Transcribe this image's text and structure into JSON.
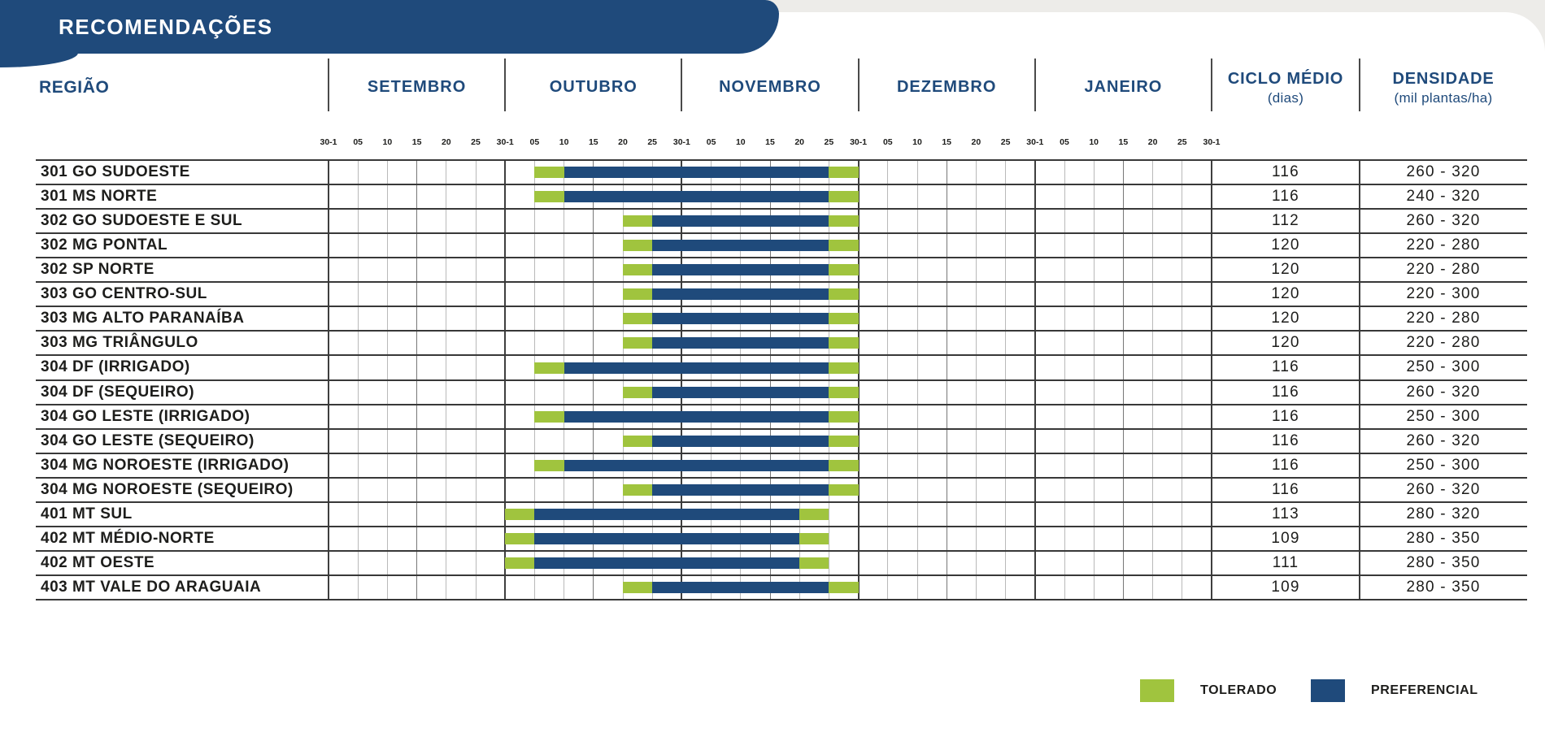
{
  "colors": {
    "banner_blue": "#1F4A7B",
    "header_text_blue": "#1F4A7B",
    "tolerado_green": "#A0C43E",
    "preferencial_blue": "#1F4A7B",
    "grid_dark": "#3f3f3f",
    "grid_light": "#b9b9b9",
    "page_edge_gray": "#EDECE9",
    "text_dark": "#1d1d1b"
  },
  "chart_data": {
    "type": "table",
    "title": "RECOMENDAÇÕES",
    "region_column_header": "REGIÃO",
    "months": [
      "SETEMBRO",
      "OUTUBRO",
      "NOVEMBRO",
      "DEZEMBRO",
      "JANEIRO"
    ],
    "tick_labels": [
      "30-1",
      "05",
      "10",
      "15",
      "20",
      "25",
      "30-1",
      "05",
      "10",
      "15",
      "20",
      "25",
      "30-1",
      "05",
      "10",
      "15",
      "20",
      "25",
      "30-1",
      "05",
      "10",
      "15",
      "20",
      "25",
      "30-1",
      "05",
      "10",
      "15",
      "20",
      "25",
      "30-1"
    ],
    "ciclo_header": {
      "title": "CICLO MÉDIO",
      "subtitle": "(dias)"
    },
    "densidade_header": {
      "title": "DENSIDADE",
      "subtitle": "(mil plantas/ha)"
    },
    "window_note": "windows reference tick indexes 0-30 of tick_labels (5-day planting periods Sep-Jan)",
    "rows": [
      {
        "region": "301 GO SUDOESTE",
        "ciclo": "116",
        "densidade": "260 - 320",
        "windows": [
          {
            "type": "tolerado",
            "from": 7,
            "to": 8
          },
          {
            "type": "preferencial",
            "from": 8,
            "to": 17
          },
          {
            "type": "tolerado",
            "from": 17,
            "to": 18
          }
        ]
      },
      {
        "region": "301 MS NORTE",
        "ciclo": "116",
        "densidade": "240 - 320",
        "windows": [
          {
            "type": "tolerado",
            "from": 7,
            "to": 8
          },
          {
            "type": "preferencial",
            "from": 8,
            "to": 17
          },
          {
            "type": "tolerado",
            "from": 17,
            "to": 18
          }
        ]
      },
      {
        "region": "302 GO SUDOESTE E SUL",
        "ciclo": "112",
        "densidade": "260 - 320",
        "windows": [
          {
            "type": "tolerado",
            "from": 10,
            "to": 11
          },
          {
            "type": "preferencial",
            "from": 11,
            "to": 17
          },
          {
            "type": "tolerado",
            "from": 17,
            "to": 18
          }
        ]
      },
      {
        "region": "302 MG PONTAL",
        "ciclo": "120",
        "densidade": "220 - 280",
        "windows": [
          {
            "type": "tolerado",
            "from": 10,
            "to": 11
          },
          {
            "type": "preferencial",
            "from": 11,
            "to": 17
          },
          {
            "type": "tolerado",
            "from": 17,
            "to": 18
          }
        ]
      },
      {
        "region": "302 SP NORTE",
        "ciclo": "120",
        "densidade": "220 - 280",
        "windows": [
          {
            "type": "tolerado",
            "from": 10,
            "to": 11
          },
          {
            "type": "preferencial",
            "from": 11,
            "to": 17
          },
          {
            "type": "tolerado",
            "from": 17,
            "to": 18
          }
        ]
      },
      {
        "region": "303 GO CENTRO-SUL",
        "ciclo": "120",
        "densidade": "220 - 300",
        "windows": [
          {
            "type": "tolerado",
            "from": 10,
            "to": 11
          },
          {
            "type": "preferencial",
            "from": 11,
            "to": 17
          },
          {
            "type": "tolerado",
            "from": 17,
            "to": 18
          }
        ]
      },
      {
        "region": "303 MG ALTO PARANAÍBA",
        "ciclo": "120",
        "densidade": "220 - 280",
        "windows": [
          {
            "type": "tolerado",
            "from": 10,
            "to": 11
          },
          {
            "type": "preferencial",
            "from": 11,
            "to": 17
          },
          {
            "type": "tolerado",
            "from": 17,
            "to": 18
          }
        ]
      },
      {
        "region": "303 MG TRIÂNGULO",
        "ciclo": "120",
        "densidade": "220 - 280",
        "windows": [
          {
            "type": "tolerado",
            "from": 10,
            "to": 11
          },
          {
            "type": "preferencial",
            "from": 11,
            "to": 17
          },
          {
            "type": "tolerado",
            "from": 17,
            "to": 18
          }
        ]
      },
      {
        "region": "304 DF (IRRIGADO)",
        "ciclo": "116",
        "densidade": "250 - 300",
        "windows": [
          {
            "type": "tolerado",
            "from": 7,
            "to": 8
          },
          {
            "type": "preferencial",
            "from": 8,
            "to": 17
          },
          {
            "type": "tolerado",
            "from": 17,
            "to": 18
          }
        ]
      },
      {
        "region": "304 DF (SEQUEIRO)",
        "ciclo": "116",
        "densidade": "260 - 320",
        "windows": [
          {
            "type": "tolerado",
            "from": 10,
            "to": 11
          },
          {
            "type": "preferencial",
            "from": 11,
            "to": 17
          },
          {
            "type": "tolerado",
            "from": 17,
            "to": 18
          }
        ]
      },
      {
        "region": "304 GO LESTE (IRRIGADO)",
        "ciclo": "116",
        "densidade": "250 - 300",
        "windows": [
          {
            "type": "tolerado",
            "from": 7,
            "to": 8
          },
          {
            "type": "preferencial",
            "from": 8,
            "to": 17
          },
          {
            "type": "tolerado",
            "from": 17,
            "to": 18
          }
        ]
      },
      {
        "region": "304 GO LESTE (SEQUEIRO)",
        "ciclo": "116",
        "densidade": "260 - 320",
        "windows": [
          {
            "type": "tolerado",
            "from": 10,
            "to": 11
          },
          {
            "type": "preferencial",
            "from": 11,
            "to": 17
          },
          {
            "type": "tolerado",
            "from": 17,
            "to": 18
          }
        ]
      },
      {
        "region": "304 MG NOROESTE (IRRIGADO)",
        "ciclo": "116",
        "densidade": "250 - 300",
        "windows": [
          {
            "type": "tolerado",
            "from": 7,
            "to": 8
          },
          {
            "type": "preferencial",
            "from": 8,
            "to": 17
          },
          {
            "type": "tolerado",
            "from": 17,
            "to": 18
          }
        ]
      },
      {
        "region": "304 MG NOROESTE (SEQUEIRO)",
        "ciclo": "116",
        "densidade": "260 - 320",
        "windows": [
          {
            "type": "tolerado",
            "from": 10,
            "to": 11
          },
          {
            "type": "preferencial",
            "from": 11,
            "to": 17
          },
          {
            "type": "tolerado",
            "from": 17,
            "to": 18
          }
        ]
      },
      {
        "region": "401 MT SUL",
        "ciclo": "113",
        "densidade": "280 - 320",
        "windows": [
          {
            "type": "tolerado",
            "from": 6,
            "to": 7
          },
          {
            "type": "preferencial",
            "from": 7,
            "to": 16
          },
          {
            "type": "tolerado",
            "from": 16,
            "to": 17
          }
        ]
      },
      {
        "region": "402 MT MÉDIO-NORTE",
        "ciclo": "109",
        "densidade": "280 - 350",
        "windows": [
          {
            "type": "tolerado",
            "from": 6,
            "to": 7
          },
          {
            "type": "preferencial",
            "from": 7,
            "to": 16
          },
          {
            "type": "tolerado",
            "from": 16,
            "to": 17
          }
        ]
      },
      {
        "region": "402 MT OESTE",
        "ciclo": "111",
        "densidade": "280 - 350",
        "windows": [
          {
            "type": "tolerado",
            "from": 6,
            "to": 7
          },
          {
            "type": "preferencial",
            "from": 7,
            "to": 16
          },
          {
            "type": "tolerado",
            "from": 16,
            "to": 17
          }
        ]
      },
      {
        "region": "403 MT VALE DO ARAGUAIA",
        "ciclo": "109",
        "densidade": "280 - 350",
        "windows": [
          {
            "type": "tolerado",
            "from": 10,
            "to": 11
          },
          {
            "type": "preferencial",
            "from": 11,
            "to": 17
          },
          {
            "type": "tolerado",
            "from": 17,
            "to": 18
          }
        ]
      }
    ],
    "legend": [
      {
        "label": "TOLERADO",
        "type": "tolerado"
      },
      {
        "label": "PREFERENCIAL",
        "type": "preferencial"
      }
    ]
  }
}
